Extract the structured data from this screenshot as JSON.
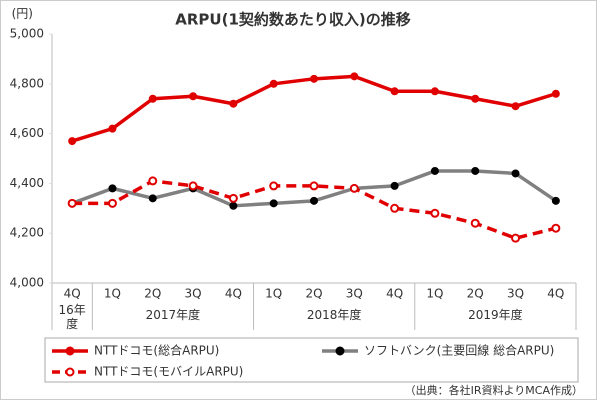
{
  "chart_data": {
    "type": "line",
    "title": "ARPU(1契約数あたり収入)の推移",
    "y_unit": "(円)",
    "groups": [
      {
        "label": "16年度",
        "categories": [
          "4Q"
        ]
      },
      {
        "label": "2017年度",
        "categories": [
          "1Q",
          "2Q",
          "3Q",
          "4Q"
        ]
      },
      {
        "label": "2018年度",
        "categories": [
          "1Q",
          "2Q",
          "3Q",
          "4Q"
        ]
      },
      {
        "label": "2019年度",
        "categories": [
          "1Q",
          "2Q",
          "3Q",
          "4Q"
        ]
      }
    ],
    "series": [
      {
        "name": "NTTドコモ(総合ARPU)",
        "color": "#e00000",
        "dash": false,
        "marker_fill": "#e00000",
        "values": [
          4570,
          4620,
          4740,
          4750,
          4720,
          4800,
          4820,
          4830,
          4770,
          4770,
          4740,
          4710,
          4760
        ]
      },
      {
        "name": "ソフトバンク(主要回線 総合ARPU)",
        "color": "#808080",
        "dash": false,
        "marker_fill": "#000000",
        "values": [
          4320,
          4380,
          4340,
          4380,
          4310,
          4320,
          4330,
          4380,
          4390,
          4450,
          4450,
          4440,
          4330
        ]
      },
      {
        "name": "NTTドコモ(モバイルARPU)",
        "color": "#e00000",
        "dash": true,
        "marker_fill": "#ffffff",
        "values": [
          4320,
          4320,
          4410,
          4390,
          4340,
          4390,
          4390,
          4380,
          4300,
          4280,
          4240,
          4180,
          4220
        ]
      }
    ],
    "ylim": [
      4000,
      5000
    ],
    "yticks": [
      {
        "value": 4000,
        "label": "4,000"
      },
      {
        "value": 4200,
        "label": "4,200"
      },
      {
        "value": 4400,
        "label": "4,400"
      },
      {
        "value": 4600,
        "label": "4,600"
      },
      {
        "value": 4800,
        "label": "4,800"
      },
      {
        "value": 5000,
        "label": "5,000"
      }
    ],
    "grid": false,
    "source": "（出典：各社IR資料よりMCA作成）"
  }
}
